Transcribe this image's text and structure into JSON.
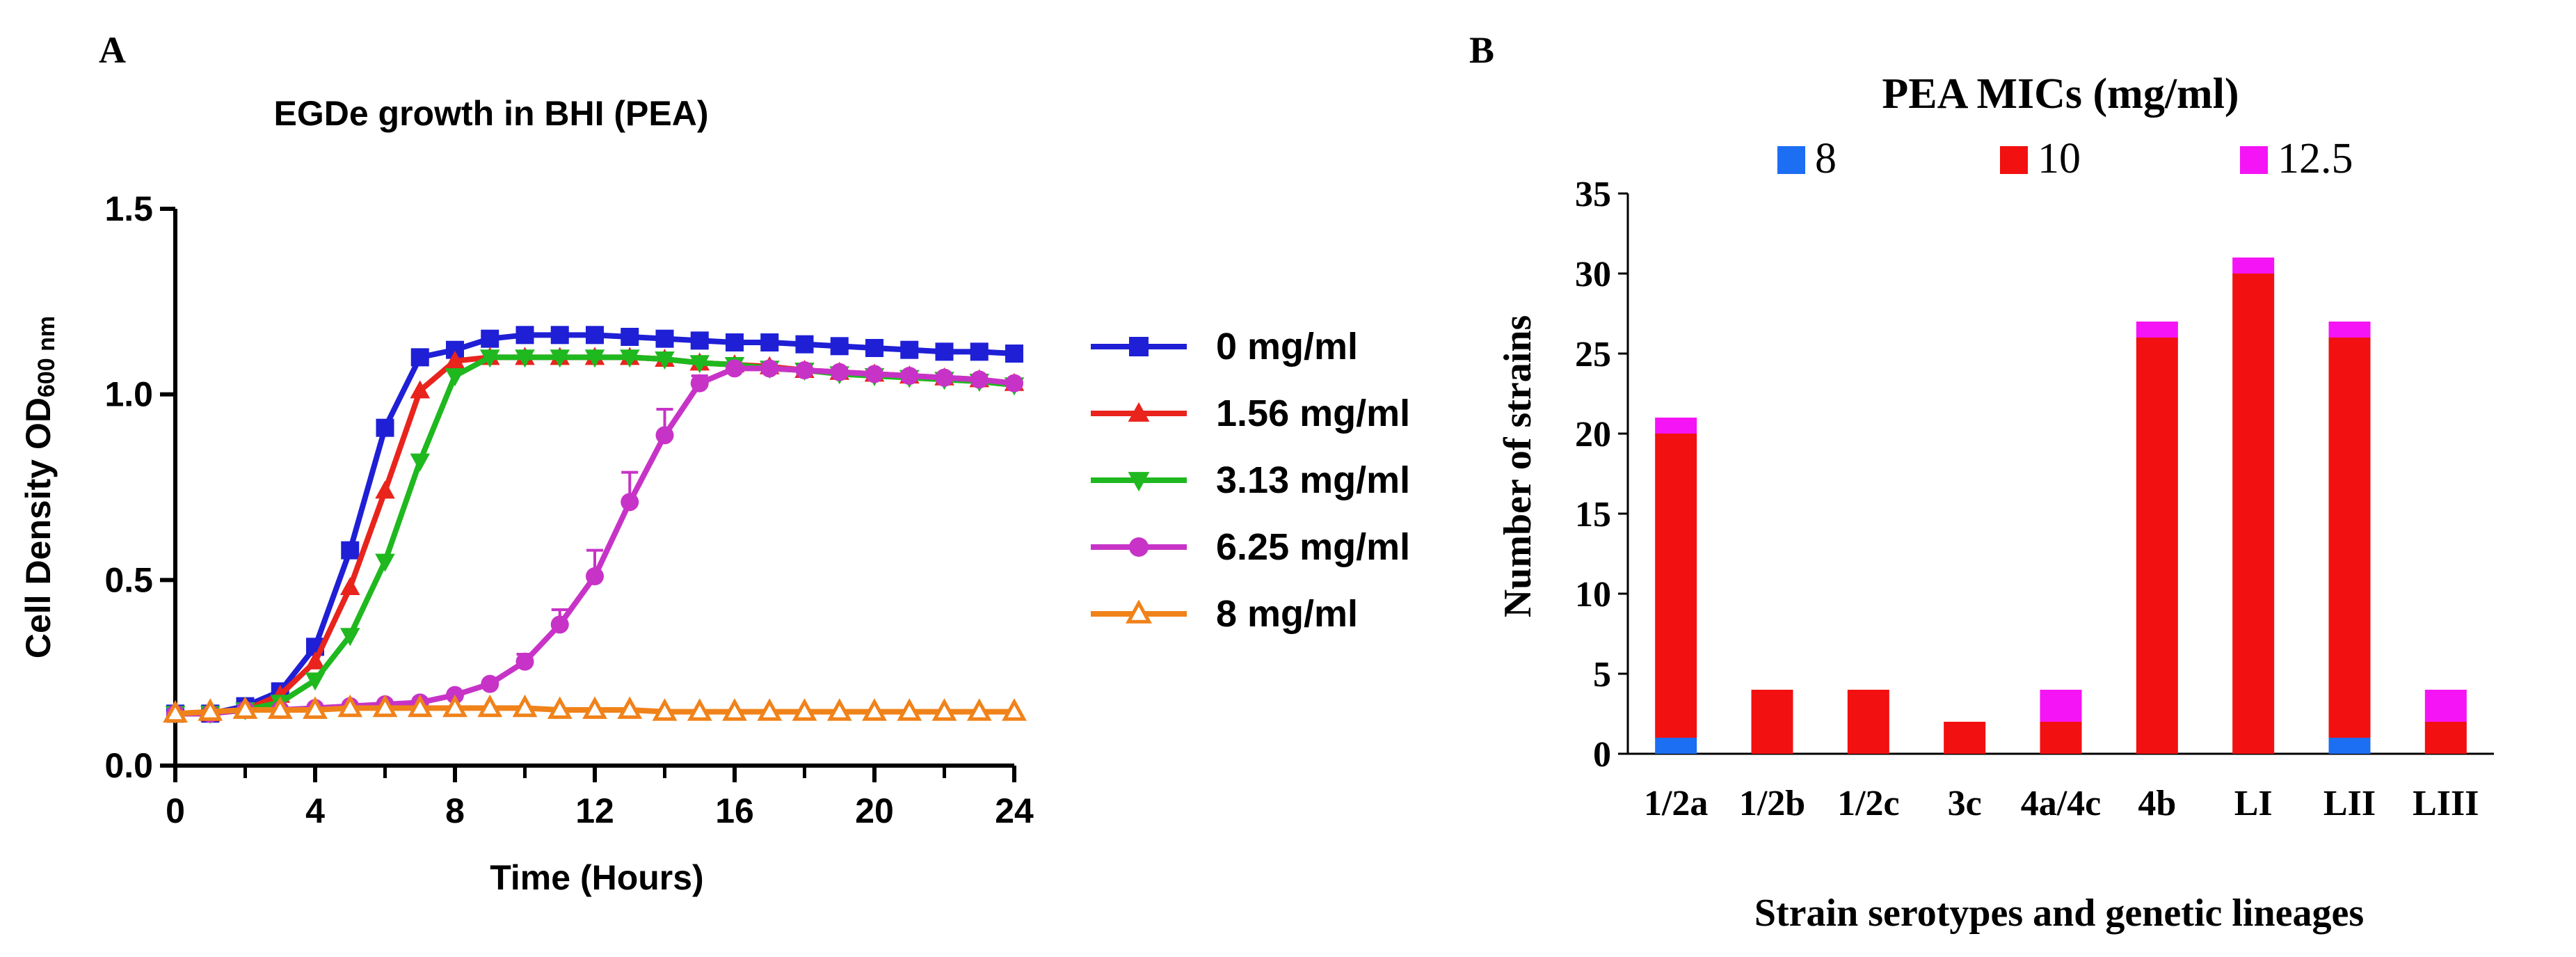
{
  "panel_a": {
    "letter": "A",
    "chart_data": {
      "type": "line",
      "title": "EGDe growth in BHI (PEA)",
      "xlabel": "Time (Hours)",
      "ylabel_main": "Cell Density OD",
      "ylabel_sub": "600 nm",
      "xlim": [
        0,
        24
      ],
      "ylim": [
        0.0,
        1.5
      ],
      "x_ticks": [
        "0",
        "4",
        "8",
        "12",
        "16",
        "20",
        "24"
      ],
      "y_ticks": [
        "0.0",
        "0.5",
        "1.0",
        "1.5"
      ],
      "x": [
        0,
        1,
        2,
        3,
        4,
        5,
        6,
        7,
        8,
        9,
        10,
        11,
        12,
        13,
        14,
        15,
        16,
        17,
        18,
        19,
        20,
        21,
        22,
        23,
        24
      ],
      "series": [
        {
          "name": "0 mg/ml",
          "color": "#1f1fd6",
          "marker": "square",
          "values": [
            0.14,
            0.14,
            0.16,
            0.2,
            0.32,
            0.58,
            0.91,
            1.1,
            1.12,
            1.15,
            1.16,
            1.16,
            1.16,
            1.155,
            1.15,
            1.145,
            1.14,
            1.14,
            1.135,
            1.13,
            1.125,
            1.12,
            1.115,
            1.115,
            1.11
          ]
        },
        {
          "name": "1.56 mg/ml",
          "color": "#e8241d",
          "marker": "triangle-up",
          "values": [
            0.14,
            0.14,
            0.15,
            0.19,
            0.28,
            0.48,
            0.74,
            1.01,
            1.09,
            1.1,
            1.1,
            1.1,
            1.1,
            1.1,
            1.095,
            1.085,
            1.08,
            1.075,
            1.065,
            1.06,
            1.055,
            1.05,
            1.045,
            1.04,
            1.03
          ]
        },
        {
          "name": "3.13 mg/ml",
          "color": "#1fb81f",
          "marker": "triangle-down",
          "values": [
            0.14,
            0.14,
            0.15,
            0.17,
            0.23,
            0.35,
            0.55,
            0.82,
            1.05,
            1.1,
            1.1,
            1.1,
            1.1,
            1.1,
            1.095,
            1.085,
            1.08,
            1.07,
            1.065,
            1.055,
            1.05,
            1.045,
            1.04,
            1.035,
            1.025
          ]
        },
        {
          "name": "6.25 mg/ml",
          "color": "#c733c7",
          "marker": "circle",
          "values": [
            0.14,
            0.14,
            0.15,
            0.15,
            0.155,
            0.16,
            0.165,
            0.17,
            0.19,
            0.22,
            0.28,
            0.38,
            0.51,
            0.71,
            0.89,
            1.03,
            1.07,
            1.07,
            1.065,
            1.06,
            1.055,
            1.05,
            1.045,
            1.04,
            1.03
          ],
          "errors": [
            0,
            0,
            0,
            0,
            0,
            0,
            0,
            0,
            0,
            0,
            0.02,
            0.04,
            0.07,
            0.08,
            0.07,
            0.02,
            0,
            0,
            0,
            0,
            0,
            0,
            0,
            0,
            0
          ]
        },
        {
          "name": "8 mg/ml",
          "color": "#f0821a",
          "marker": "triangle-up-open",
          "values": [
            0.14,
            0.145,
            0.15,
            0.15,
            0.15,
            0.155,
            0.155,
            0.155,
            0.155,
            0.155,
            0.155,
            0.15,
            0.15,
            0.15,
            0.145,
            0.145,
            0.145,
            0.145,
            0.145,
            0.145,
            0.145,
            0.145,
            0.145,
            0.145,
            0.145
          ]
        }
      ]
    }
  },
  "panel_b": {
    "letter": "B",
    "chart_data": {
      "type": "bar",
      "stacked": true,
      "title": "PEA MICs (mg/ml)",
      "xlabel": "Strain serotypes and genetic lineages",
      "ylabel": "Number of strains",
      "ylim": [
        0,
        35
      ],
      "y_ticks": [
        "0",
        "5",
        "10",
        "15",
        "20",
        "25",
        "30",
        "35"
      ],
      "categories": [
        "1/2a",
        "1/2b",
        "1/2c",
        "3c",
        "4a/4c",
        "4b",
        "LI",
        "LII",
        "LIII"
      ],
      "series": [
        {
          "name": "8",
          "color": "#1c6ef2",
          "values": [
            1,
            0,
            0,
            0,
            0,
            0,
            0,
            1,
            0
          ]
        },
        {
          "name": "10",
          "color": "#f21010",
          "values": [
            19,
            4,
            4,
            2,
            2,
            26,
            30,
            25,
            2
          ]
        },
        {
          "name": "12.5",
          "color": "#f514f5",
          "values": [
            1,
            0,
            0,
            0,
            2,
            1,
            1,
            1,
            2
          ]
        }
      ]
    }
  }
}
